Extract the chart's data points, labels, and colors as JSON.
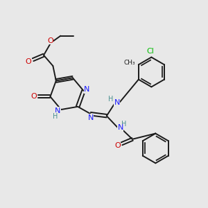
{
  "background_color": "#e8e8e8",
  "atom_colors": {
    "N": "#1a1aff",
    "O": "#cc0000",
    "Cl": "#00bb00",
    "H": "#4a9090"
  },
  "bond_color": "#1a1a1a",
  "bond_width": 1.4
}
